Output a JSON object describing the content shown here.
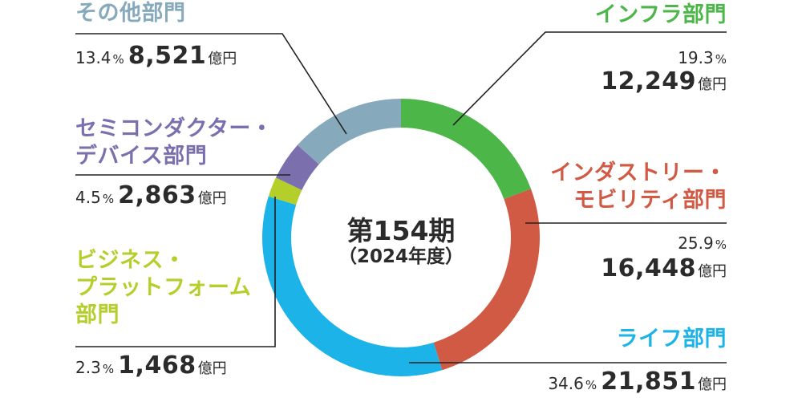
{
  "chart_data": {
    "type": "pie",
    "style": "donut",
    "center_title": "第154期",
    "center_subtitle": "（2024年度）",
    "unit_label": "億円",
    "percent_symbol": "%",
    "segments": [
      {
        "name": "インフラ部門",
        "percent_label": "19.3",
        "value_label": "12,249",
        "percent": 19.3,
        "value": 12249,
        "color": "#4cb748"
      },
      {
        "name": "インダストリー・モビリティ部門",
        "name_lines": [
          "インダストリー・",
          "モビリティ部門"
        ],
        "percent_label": "25.9",
        "value_label": "16,448",
        "percent": 25.9,
        "value": 16448,
        "color": "#d05a43"
      },
      {
        "name": "ライフ部門",
        "percent_label": "34.6",
        "value_label": "21,851",
        "percent": 34.6,
        "value": 21851,
        "color": "#1bb3e8"
      },
      {
        "name": "ビジネス・プラットフォーム部門",
        "name_lines": [
          "ビジネス・",
          "プラットフォーム",
          "部門"
        ],
        "percent_label": "2.3",
        "value_label": "1,468",
        "percent": 2.3,
        "value": 1468,
        "color": "#b5cf2a"
      },
      {
        "name": "セミコンダクター・デバイス部門",
        "name_lines": [
          "セミコンダクター・",
          "デバイス部門"
        ],
        "percent_label": "4.5",
        "value_label": "2,863",
        "percent": 4.5,
        "value": 2863,
        "color": "#7b6fae"
      },
      {
        "name": "その他部門",
        "percent_label": "13.4",
        "value_label": "8,521",
        "percent": 13.4,
        "value": 8521,
        "color": "#86a9bc"
      }
    ]
  }
}
